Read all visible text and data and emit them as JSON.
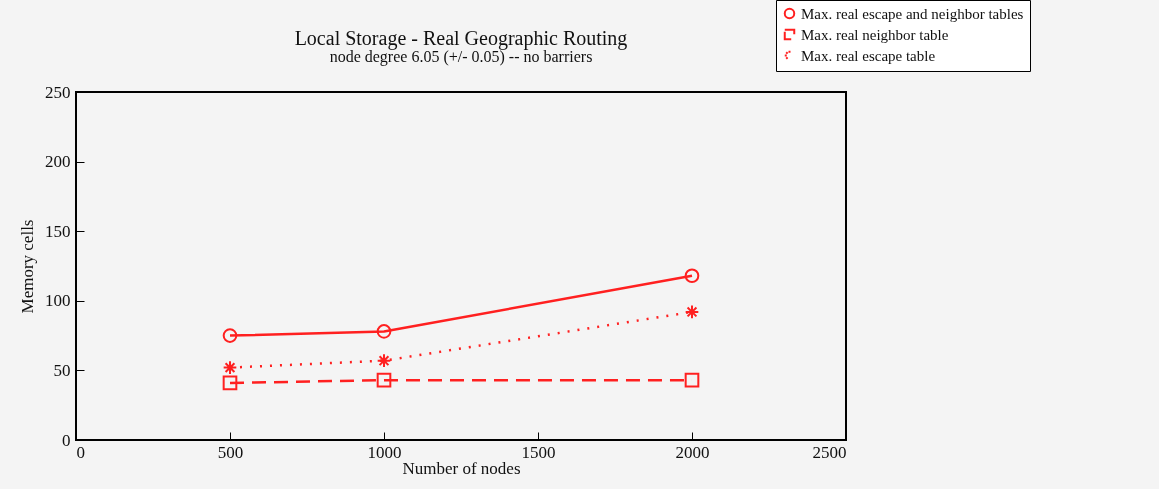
{
  "chart_data": {
    "type": "line",
    "title": "Local Storage - Real Geographic Routing",
    "subtitle": "node degree 6.05 (+/- 0.05) -- no barriers",
    "xlabel": "Number of nodes",
    "ylabel": "Memory cells",
    "x": [
      500,
      1000,
      2000
    ],
    "series": [
      {
        "name": "Max. real escape and neighbor tables",
        "color": "#ff2020",
        "values": [
          75,
          78,
          118
        ],
        "marker": "circle",
        "line_style": "solid"
      },
      {
        "name": "Max. real neighbor table",
        "color": "#ff2020",
        "values": [
          41,
          43,
          43
        ],
        "marker": "square",
        "line_style": "dashed"
      },
      {
        "name": "Max. real escape table",
        "color": "#ff2020",
        "values": [
          52,
          57,
          92
        ],
        "marker": "cross",
        "line_style": "dotted"
      }
    ],
    "xlim": [
      0,
      2500
    ],
    "xticks": [
      0,
      500,
      1000,
      1500,
      2000,
      2500
    ],
    "ylim": [
      0,
      250
    ],
    "yticks": [
      0,
      50,
      100,
      150,
      200,
      250
    ],
    "grid": false,
    "legend": "top right"
  }
}
